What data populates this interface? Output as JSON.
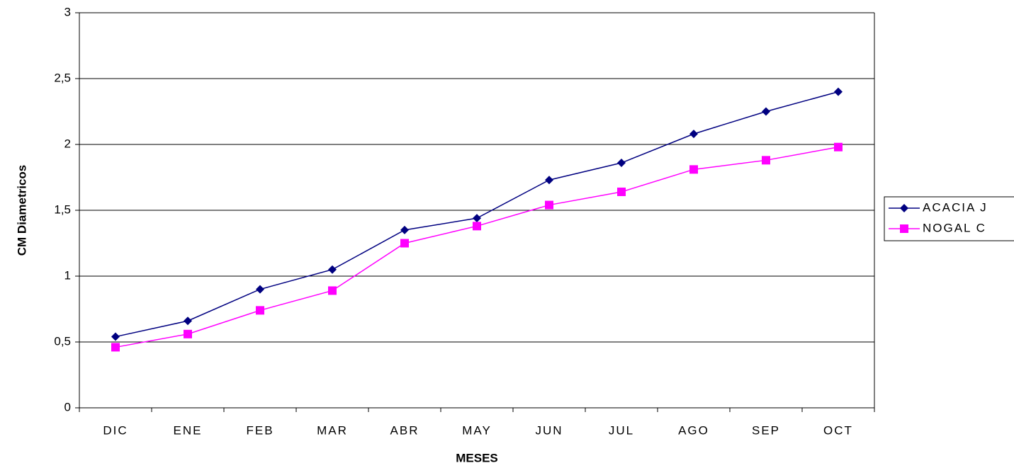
{
  "chart_data": {
    "type": "line",
    "x_label": "MESES",
    "y_label": "CM Diametricos",
    "categories": [
      "DIC",
      "ENE",
      "FEB",
      "MAR",
      "ABR",
      "MAY",
      "JUN",
      "JUL",
      "AGO",
      "SEP",
      "OCT"
    ],
    "series": [
      {
        "name": "ACACIA J",
        "color": "#000080",
        "marker": "diamond",
        "values": [
          0.54,
          0.66,
          0.9,
          1.05,
          1.35,
          1.44,
          1.73,
          1.86,
          2.08,
          2.25,
          2.4
        ]
      },
      {
        "name": "NOGAL C",
        "color": "#ff00ff",
        "marker": "square",
        "values": [
          0.46,
          0.56,
          0.74,
          0.89,
          1.25,
          1.38,
          1.54,
          1.64,
          1.81,
          1.88,
          1.98
        ]
      }
    ],
    "ylim": [
      0,
      3
    ],
    "yticks": [
      0,
      {
        "value": 0.5,
        "label": "0,5"
      },
      1,
      {
        "value": 1.5,
        "label": "1,5"
      },
      2,
      {
        "value": 2.5,
        "label": "2,5"
      },
      3
    ],
    "grid": true,
    "legend": "right"
  }
}
